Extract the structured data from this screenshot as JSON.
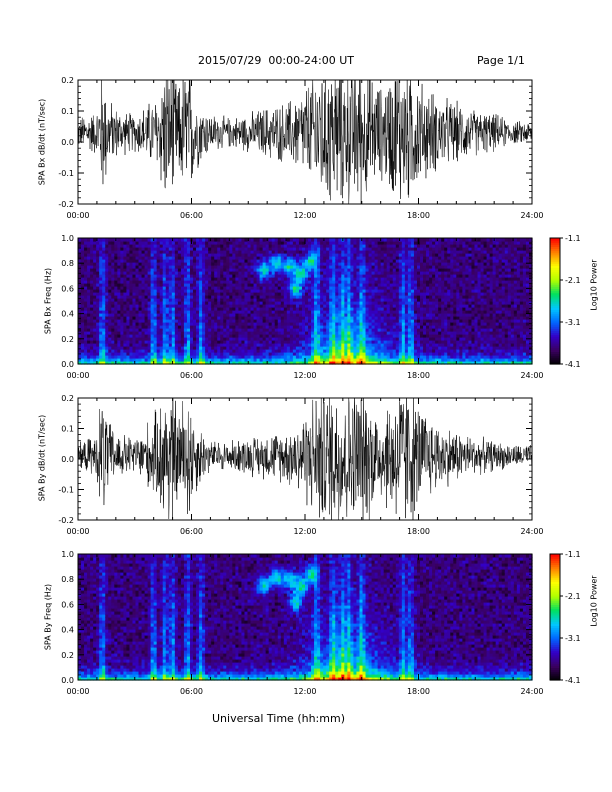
{
  "page": {
    "title": "2015/07/29  00:00-24:00 UT",
    "page_number": "Page 1/1",
    "xaxis_title": "Universal Time (hh:mm)"
  },
  "colors": {
    "trace": "#000000",
    "colormap": [
      "#000000",
      "#3a0060",
      "#3300c8",
      "#0066ff",
      "#00c8ff",
      "#00e060",
      "#b0ff00",
      "#ffff00",
      "#ff8000",
      "#ff0000"
    ]
  },
  "chart_data": [
    {
      "type": "line",
      "ylabel": "SPA Bx dB/dt (nT/sec)",
      "xlim": [
        0,
        24
      ],
      "ylim": [
        -0.2,
        0.2
      ],
      "xticks": [
        "00:00",
        "06:00",
        "12:00",
        "18:00",
        "24:00"
      ],
      "yticks": [
        "-0.2",
        "-0.1",
        "0.0",
        "0.1",
        "0.2"
      ],
      "envelope": {
        "x": [
          0,
          1,
          1.3,
          1.6,
          2.2,
          3,
          4.2,
          4.6,
          5,
          5.3,
          5.8,
          6.2,
          7,
          8,
          9,
          10,
          11,
          12,
          12.8,
          13.5,
          14,
          14.5,
          15,
          16,
          17,
          17.5,
          18,
          19,
          20,
          21,
          22,
          23,
          24
        ],
        "amplitude": [
          0.04,
          0.06,
          0.18,
          0.09,
          0.06,
          0.05,
          0.1,
          0.2,
          0.2,
          0.12,
          0.2,
          0.1,
          0.05,
          0.04,
          0.05,
          0.07,
          0.08,
          0.12,
          0.2,
          0.2,
          0.2,
          0.2,
          0.2,
          0.12,
          0.2,
          0.2,
          0.14,
          0.1,
          0.08,
          0.06,
          0.05,
          0.03,
          0.03
        ],
        "offset": 0.03
      }
    },
    {
      "type": "heatmap",
      "ylabel": "SPA Bx Freq (Hz)",
      "xlim": [
        0,
        24
      ],
      "ylim": [
        0,
        1
      ],
      "xticks": [
        "00:00",
        "06:00",
        "12:00",
        "18:00",
        "24:00"
      ],
      "yticks": [
        "0.0",
        "0.2",
        "0.4",
        "0.6",
        "0.8",
        "1.0"
      ],
      "colorbar": {
        "label": "Log10 Power",
        "ticks": [
          "-1.1",
          "-2.1",
          "-3.1",
          "-4.1"
        ],
        "range": [
          -4.1,
          -1.1
        ]
      },
      "bright_bands": [
        1.3,
        4.0,
        4.6,
        5.0,
        5.8,
        6.5,
        12.6,
        13.5,
        14.0,
        14.3,
        15.0,
        17.2,
        17.6
      ],
      "blobs": [
        [
          9.8,
          0.75
        ],
        [
          10.5,
          0.8
        ],
        [
          11.2,
          0.78
        ],
        [
          11.8,
          0.72
        ],
        [
          12.3,
          0.82
        ],
        [
          11.5,
          0.6
        ]
      ]
    },
    {
      "type": "line",
      "ylabel": "SPA By dB/dt (nT/sec)",
      "xlim": [
        0,
        24
      ],
      "ylim": [
        -0.2,
        0.2
      ],
      "xticks": [
        "00:00",
        "06:00",
        "12:00",
        "18:00",
        "24:00"
      ],
      "yticks": [
        "-0.2",
        "-0.1",
        "0.0",
        "0.1",
        "0.2"
      ],
      "envelope": {
        "x": [
          0,
          1,
          1.3,
          1.6,
          2.2,
          3,
          4.2,
          4.6,
          5,
          5.3,
          5.8,
          6.2,
          7,
          8,
          9,
          10,
          11,
          12,
          12.8,
          13.5,
          14,
          14.5,
          15,
          16,
          17,
          17.5,
          18,
          19,
          20,
          21,
          22,
          23,
          24
        ],
        "amplitude": [
          0.03,
          0.06,
          0.2,
          0.09,
          0.06,
          0.05,
          0.12,
          0.2,
          0.2,
          0.12,
          0.2,
          0.1,
          0.04,
          0.04,
          0.05,
          0.06,
          0.07,
          0.12,
          0.2,
          0.2,
          0.2,
          0.2,
          0.2,
          0.12,
          0.2,
          0.2,
          0.14,
          0.09,
          0.07,
          0.05,
          0.04,
          0.03,
          0.03
        ],
        "offset": 0.01
      }
    },
    {
      "type": "heatmap",
      "ylabel": "SPA By Freq (Hz)",
      "xlim": [
        0,
        24
      ],
      "ylim": [
        0,
        1
      ],
      "xticks": [
        "00:00",
        "06:00",
        "12:00",
        "18:00",
        "24:00"
      ],
      "yticks": [
        "0.0",
        "0.2",
        "0.4",
        "0.6",
        "0.8",
        "1.0"
      ],
      "colorbar": {
        "label": "Log10 Power",
        "ticks": [
          "-1.1",
          "-2.1",
          "-3.1",
          "-4.1"
        ],
        "range": [
          -4.1,
          -1.1
        ]
      },
      "bright_bands": [
        1.3,
        4.0,
        4.6,
        5.0,
        5.8,
        6.5,
        12.6,
        13.5,
        14.0,
        14.3,
        15.0,
        17.2,
        17.6
      ],
      "blobs": [
        [
          9.8,
          0.75
        ],
        [
          10.5,
          0.82
        ],
        [
          11.2,
          0.8
        ],
        [
          11.8,
          0.74
        ],
        [
          12.3,
          0.84
        ],
        [
          11.5,
          0.62
        ]
      ]
    }
  ]
}
